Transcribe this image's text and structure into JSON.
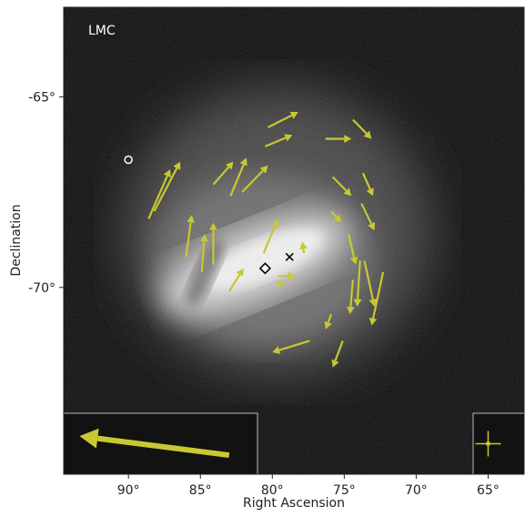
{
  "chart_data": {
    "type": "scatter",
    "title": "",
    "panel_label": "LMC",
    "xlabel": "Right Ascension",
    "ylabel": "Declination",
    "x_inverted": true,
    "xlim": [
      94.5,
      62.5
    ],
    "ylim": [
      -74.9,
      -62.65
    ],
    "x_ticks": [
      90,
      85,
      80,
      75,
      70,
      65
    ],
    "x_tick_labels": [
      "90°",
      "85°",
      "80°",
      "75°",
      "70°",
      "65°"
    ],
    "y_ticks": [
      -65,
      -70
    ],
    "y_tick_labels": [
      "-65°",
      "-70°"
    ],
    "background": "grayscale galaxy image (Large Magellanic Cloud)",
    "colors": {
      "vector": "#c8c832",
      "plot_background": "#121212",
      "frame": "#ffffff",
      "markers": "#ffffff"
    },
    "markers": [
      {
        "shape": "circle",
        "ra": 90.0,
        "dec": -66.65
      },
      {
        "shape": "diamond",
        "ra": 80.5,
        "dec": -69.5
      },
      {
        "shape": "cross",
        "ra": 78.8,
        "dec": -69.2
      }
    ],
    "vectors": [
      {
        "ra": 88.6,
        "dec": -68.2,
        "ra_end": 87.1,
        "dec_end": -66.9
      },
      {
        "ra": 88.2,
        "dec": -68.0,
        "ra_end": 86.4,
        "dec_end": -66.7
      },
      {
        "ra": 86.0,
        "dec": -69.2,
        "ra_end": 85.6,
        "dec_end": -68.1
      },
      {
        "ra": 84.9,
        "dec": -69.6,
        "ra_end": 84.7,
        "dec_end": -68.6
      },
      {
        "ra": 84.1,
        "dec": -69.4,
        "ra_end": 84.1,
        "dec_end": -68.3
      },
      {
        "ra": 83.0,
        "dec": -70.1,
        "ra_end": 82.0,
        "dec_end": -69.5
      },
      {
        "ra": 84.1,
        "dec": -67.3,
        "ra_end": 82.7,
        "dec_end": -66.7
      },
      {
        "ra": 82.9,
        "dec": -67.6,
        "ra_end": 81.8,
        "dec_end": -66.6
      },
      {
        "ra": 82.1,
        "dec": -67.5,
        "ra_end": 80.3,
        "dec_end": -66.8
      },
      {
        "ra": 80.6,
        "dec": -69.1,
        "ra_end": 79.6,
        "dec_end": -68.2
      },
      {
        "ra": 80.3,
        "dec": -65.8,
        "ra_end": 78.2,
        "dec_end": -65.4
      },
      {
        "ra": 80.5,
        "dec": -66.3,
        "ra_end": 78.6,
        "dec_end": -66.0
      },
      {
        "ra": 77.8,
        "dec": -69.1,
        "ra_end": 77.9,
        "dec_end": -68.8
      },
      {
        "ra": 79.6,
        "dec": -69.7,
        "ra_end": 78.4,
        "dec_end": -69.7
      },
      {
        "ra": 79.6,
        "dec": -69.9,
        "ra_end": 79.1,
        "dec_end": -69.9
      },
      {
        "ra": 76.3,
        "dec": -66.1,
        "ra_end": 74.5,
        "dec_end": -66.1
      },
      {
        "ra": 75.8,
        "dec": -67.1,
        "ra_end": 74.5,
        "dec_end": -67.6
      },
      {
        "ra": 75.9,
        "dec": -68.0,
        "ra_end": 75.2,
        "dec_end": -68.3
      },
      {
        "ra": 74.4,
        "dec": -65.6,
        "ra_end": 73.1,
        "dec_end": -66.1
      },
      {
        "ra": 73.7,
        "dec": -67.0,
        "ra_end": 73.0,
        "dec_end": -67.6
      },
      {
        "ra": 73.8,
        "dec": -67.8,
        "ra_end": 72.9,
        "dec_end": -68.5
      },
      {
        "ra": 74.7,
        "dec": -68.6,
        "ra_end": 74.2,
        "dec_end": -69.4
      },
      {
        "ra": 73.6,
        "dec": -69.3,
        "ra_end": 72.9,
        "dec_end": -70.5
      },
      {
        "ra": 73.9,
        "dec": -69.3,
        "ra_end": 74.1,
        "dec_end": -70.5
      },
      {
        "ra": 74.4,
        "dec": -69.8,
        "ra_end": 74.6,
        "dec_end": -70.7
      },
      {
        "ra": 75.9,
        "dec": -70.7,
        "ra_end": 76.3,
        "dec_end": -71.1
      },
      {
        "ra": 72.3,
        "dec": -69.6,
        "ra_end": 73.1,
        "dec_end": -71.0
      },
      {
        "ra": 75.1,
        "dec": -71.4,
        "ra_end": 75.8,
        "dec_end": -72.1
      },
      {
        "ra": 77.4,
        "dec": -71.4,
        "ra_end": 80.0,
        "dec_end": -71.7
      }
    ],
    "scale_vector": {
      "ra": 83.0,
      "dec": -74.4,
      "ra_end": 93.4,
      "dec_end": -73.9
    },
    "error_bar_marker": {
      "ra": 65.0,
      "dec": -74.1
    }
  }
}
